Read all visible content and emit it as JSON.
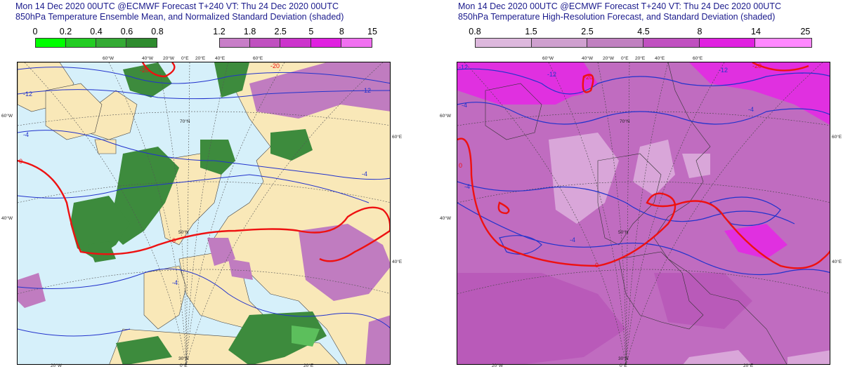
{
  "left": {
    "title_line1": "Mon 14 Dec 2020 00UTC @ECMWF Forecast T+240 VT: Thu 24 Dec 2020 00UTC",
    "title_line2": "850hPa Temperature Ensemble Mean, and Normalized Standard Deviation (shaded)",
    "legend_green": {
      "ticks": [
        "0",
        "0.2",
        "0.4",
        "0.6",
        "0.8"
      ],
      "colors": [
        "#00ff00",
        "#22cc22",
        "#33aa33",
        "#2e8b2e"
      ]
    },
    "legend_purple": {
      "ticks": [
        "1.2",
        "1.8",
        "2.5",
        "5",
        "8",
        "15"
      ],
      "colors": [
        "#c87ec8",
        "#c050c0",
        "#cc33cc",
        "#e020e0",
        "#f070f0"
      ]
    },
    "contours": [
      "-20",
      "-12",
      "-12",
      "-4",
      "-4",
      "0",
      "0",
      "-20",
      "-4"
    ],
    "grid_labels": [
      "60°W",
      "40°W",
      "20°W",
      "0°E",
      "20°E",
      "40°E",
      "60°E",
      "60°W",
      "60°E",
      "40°W",
      "40°E",
      "70°N",
      "50°N",
      "30°N",
      "20°W",
      "0°E",
      "20°E"
    ],
    "colors": {
      "ocean": "#d6f0fa",
      "land": "#f9e8b8",
      "green": "#3d8b3d",
      "purple": "#c07cc0",
      "contour_blue": "#2233cc",
      "contour_red": "#ee1111"
    }
  },
  "right": {
    "title_line1": "Mon 14 Dec 2020 00UTC @ECMWF Forecast T+240 VT: Thu 24 Dec 2020 00UTC",
    "title_line2": "850hPa Temperature High-Resolution Forecast, and Standard Deviation (shaded)",
    "legend": {
      "ticks": [
        "0.8",
        "1.5",
        "2.5",
        "4.5",
        "8",
        "14",
        "25"
      ],
      "colors": [
        "#ddb8dd",
        "#cfa0cf",
        "#c080c0",
        "#c050c0",
        "#e020e0",
        "#ff88ff"
      ]
    },
    "contours": [
      "-12",
      "-12",
      "-12",
      "-4",
      "-4",
      "-4",
      "-4",
      "0",
      "0",
      "-20",
      "-20"
    ],
    "grid_labels": [
      "60°W",
      "40°W",
      "20°W",
      "0°E",
      "20°E",
      "40°E",
      "60°E",
      "60°W",
      "60°E",
      "40°W",
      "40°E",
      "70°N",
      "50°N",
      "30°N",
      "20°W",
      "0°E",
      "20°E"
    ],
    "colors": {
      "base": "#c06cc0",
      "light": "#d9a6d9",
      "bright": "#e030e0",
      "contour_blue": "#2233cc",
      "contour_red": "#ee1111"
    }
  }
}
